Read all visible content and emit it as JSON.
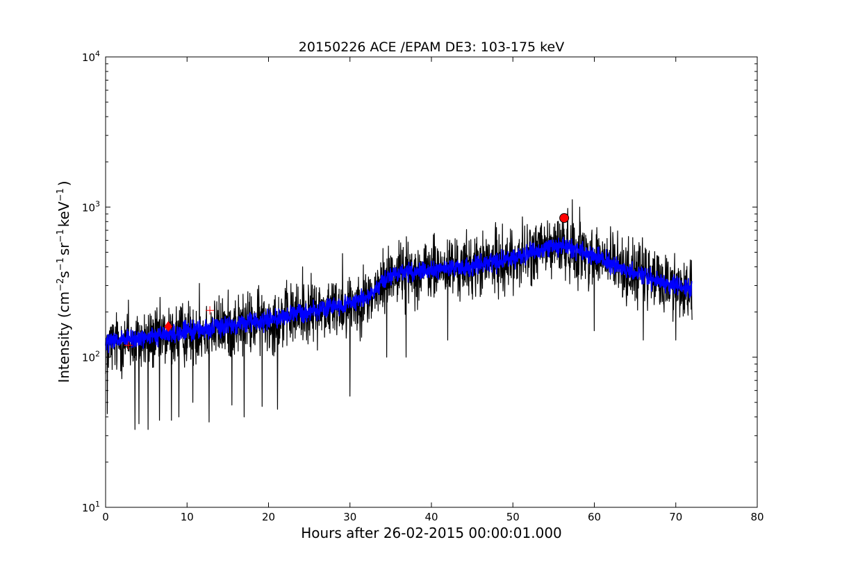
{
  "chart_data": {
    "type": "line",
    "title": "20150226 ACE /EPAM DE3: 103-175 keV",
    "xlabel": "Hours after 26-02-2015 00:00:01.000",
    "ylabel": {
      "prefix": "Intensity (cm",
      "sup1": "−2",
      "mid1": "s",
      "sup2": "−1",
      "mid2": "sr",
      "sup3": "−1",
      "mid3": "keV",
      "sup4": "−1",
      "suffix": ")"
    },
    "xlim": [
      0,
      80
    ],
    "ylim": [
      10,
      10000
    ],
    "yscale": "log",
    "grid": false,
    "x_ticks": [
      {
        "value": 0,
        "label": "0"
      },
      {
        "value": 10,
        "label": "10"
      },
      {
        "value": 20,
        "label": "20"
      },
      {
        "value": 30,
        "label": "30"
      },
      {
        "value": 40,
        "label": "40"
      },
      {
        "value": 50,
        "label": "50"
      },
      {
        "value": 60,
        "label": "60"
      },
      {
        "value": 70,
        "label": "70"
      },
      {
        "value": 80,
        "label": "80"
      }
    ],
    "y_ticks": [
      {
        "value": 10,
        "base": "10",
        "exp": "1"
      },
      {
        "value": 100,
        "base": "10",
        "exp": "2"
      },
      {
        "value": 1000,
        "base": "10",
        "exp": "3"
      },
      {
        "value": 10000,
        "base": "10",
        "exp": "4"
      }
    ],
    "colors": {
      "raw": "#000000",
      "smoothed": "#0000ff",
      "marker": "#ff0000"
    },
    "series": [
      {
        "role": "raw",
        "x_end": 72,
        "trend": [
          [
            0,
            120
          ],
          [
            5,
            130
          ],
          [
            10,
            145
          ],
          [
            15,
            160
          ],
          [
            20,
            175
          ],
          [
            25,
            200
          ],
          [
            30,
            225
          ],
          [
            33,
            260
          ],
          [
            35,
            360
          ],
          [
            40,
            380
          ],
          [
            45,
            400
          ],
          [
            50,
            450
          ],
          [
            53,
            510
          ],
          [
            56,
            560
          ],
          [
            60,
            470
          ],
          [
            65,
            360
          ],
          [
            70,
            300
          ],
          [
            72,
            280
          ]
        ],
        "spread": 0.45,
        "spikes": [
          [
            0.2,
            42
          ],
          [
            3.6,
            33
          ],
          [
            4.1,
            36
          ],
          [
            5.2,
            33
          ],
          [
            6.6,
            38
          ],
          [
            8.1,
            38
          ],
          [
            9.0,
            40
          ],
          [
            10.7,
            50
          ],
          [
            12.7,
            37
          ],
          [
            15.5,
            48
          ],
          [
            17.0,
            40
          ],
          [
            19.2,
            47
          ],
          [
            21.1,
            45
          ],
          [
            30.0,
            55
          ],
          [
            34.5,
            100
          ],
          [
            36.9,
            100
          ],
          [
            42.0,
            130
          ],
          [
            48.0,
            140
          ],
          [
            60.0,
            150
          ],
          [
            66.0,
            130
          ],
          [
            70.0,
            130
          ]
        ],
        "peaks": [
          [
            2.8,
            240
          ],
          [
            11.5,
            310
          ],
          [
            24.2,
            400
          ],
          [
            29.1,
            490
          ],
          [
            36.0,
            600
          ],
          [
            42.6,
            560
          ],
          [
            48.0,
            730
          ],
          [
            53.5,
            780
          ],
          [
            57.3,
            1120
          ],
          [
            58.2,
            1000
          ],
          [
            62.0,
            740
          ],
          [
            65.5,
            580
          ]
        ]
      },
      {
        "role": "smoothed",
        "x_end": 72,
        "trend": [
          [
            0,
            125
          ],
          [
            5,
            135
          ],
          [
            10,
            148
          ],
          [
            15,
            162
          ],
          [
            20,
            178
          ],
          [
            25,
            202
          ],
          [
            30,
            228
          ],
          [
            33,
            265
          ],
          [
            35,
            365
          ],
          [
            40,
            382
          ],
          [
            45,
            402
          ],
          [
            50,
            455
          ],
          [
            53,
            515
          ],
          [
            56,
            560
          ],
          [
            60,
            470
          ],
          [
            65,
            360
          ],
          [
            70,
            300
          ],
          [
            72,
            280
          ]
        ],
        "spread": 0.13
      }
    ],
    "markers": [
      {
        "shape": "plus",
        "x": 2.8,
        "y": 120
      },
      {
        "shape": "diamond",
        "x": 7.7,
        "y": 160
      },
      {
        "shape": "plus",
        "x": 12.8,
        "y": 205
      },
      {
        "shape": "circle",
        "x": 56.3,
        "y": 845
      }
    ]
  }
}
